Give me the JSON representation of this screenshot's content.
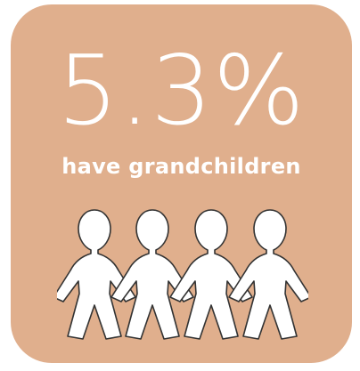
{
  "stat": {
    "value": "5.3%",
    "label": "have grandchildren"
  },
  "colors": {
    "card_background": "#e0af8d",
    "text": "#ffffff",
    "figure_fill": "#ffffff",
    "figure_outline": "#333333"
  },
  "illustration": {
    "icon": "paper-doll-chain-icon",
    "figure_count": 4
  }
}
